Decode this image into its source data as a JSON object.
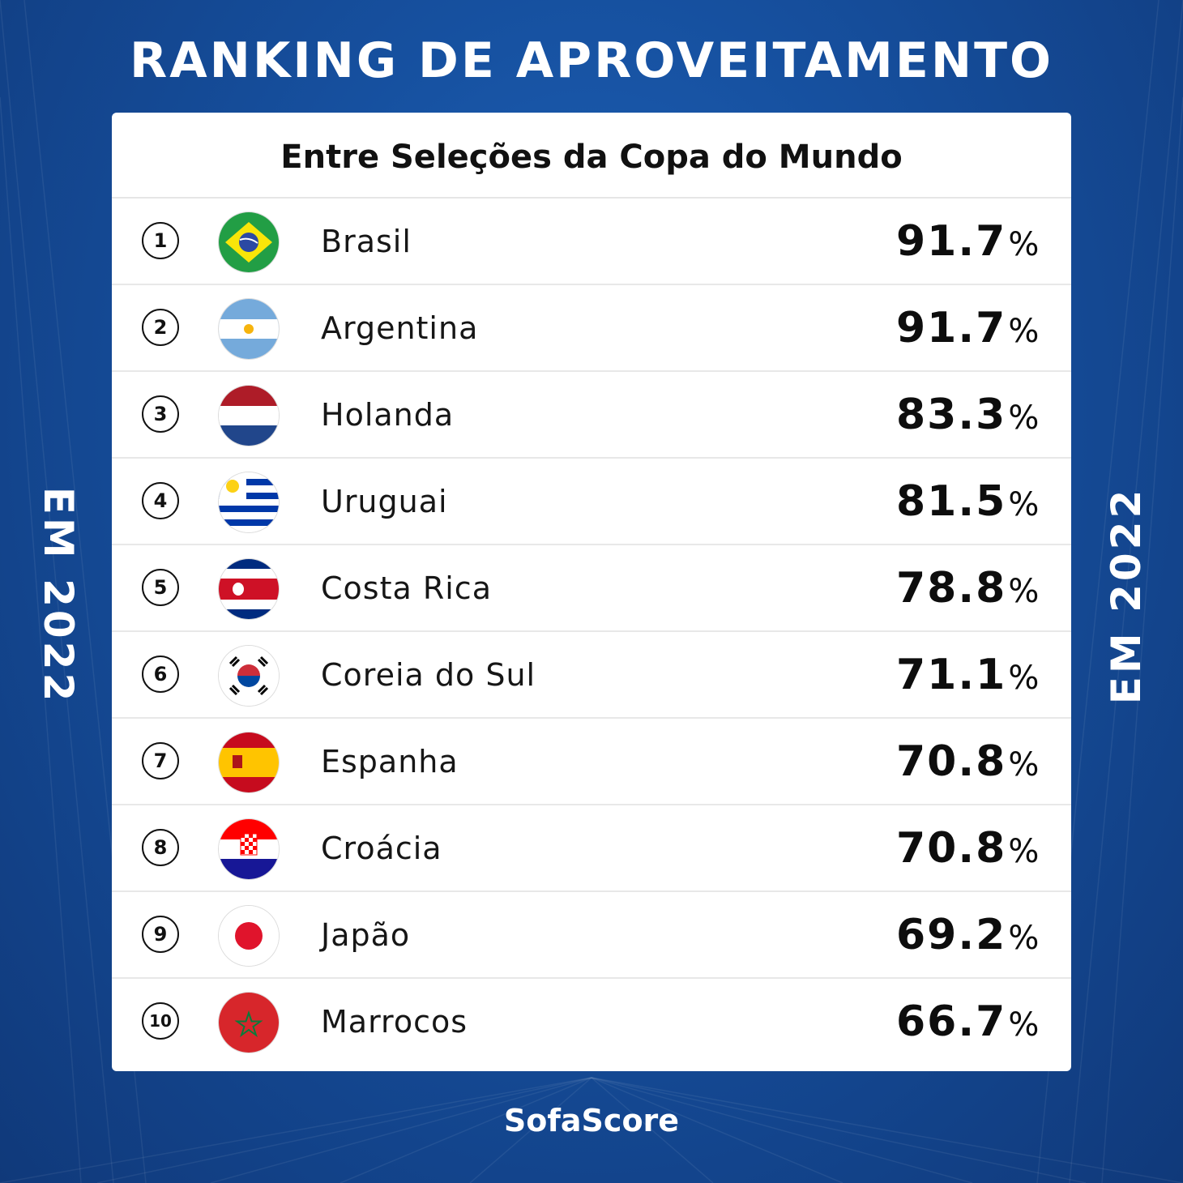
{
  "title": "RANKING DE APROVEITAMENTO",
  "subtitle": "Entre Seleções da Copa do Mundo",
  "side_label": "EM 2022",
  "brand": "SofaScore",
  "percent_sign": "%",
  "rows": [
    {
      "rank": "1",
      "country": "Brasil",
      "value": "91.7",
      "flag": "brazil-flag-icon"
    },
    {
      "rank": "2",
      "country": "Argentina",
      "value": "91.7",
      "flag": "argentina-flag-icon"
    },
    {
      "rank": "3",
      "country": "Holanda",
      "value": "83.3",
      "flag": "netherlands-flag-icon"
    },
    {
      "rank": "4",
      "country": "Uruguai",
      "value": "81.5",
      "flag": "uruguay-flag-icon"
    },
    {
      "rank": "5",
      "country": "Costa Rica",
      "value": "78.8",
      "flag": "costa-rica-flag-icon"
    },
    {
      "rank": "6",
      "country": "Coreia do Sul",
      "value": "71.1",
      "flag": "south-korea-flag-icon"
    },
    {
      "rank": "7",
      "country": "Espanha",
      "value": "70.8",
      "flag": "spain-flag-icon"
    },
    {
      "rank": "8",
      "country": "Croácia",
      "value": "70.8",
      "flag": "croatia-flag-icon"
    },
    {
      "rank": "9",
      "country": "Japão",
      "value": "69.2",
      "flag": "japan-flag-icon"
    },
    {
      "rank": "10",
      "country": "Marrocos",
      "value": "66.7",
      "flag": "morocco-flag-icon"
    }
  ],
  "colors": {
    "background": "#16509f",
    "card": "#ffffff",
    "text": "#111111"
  }
}
